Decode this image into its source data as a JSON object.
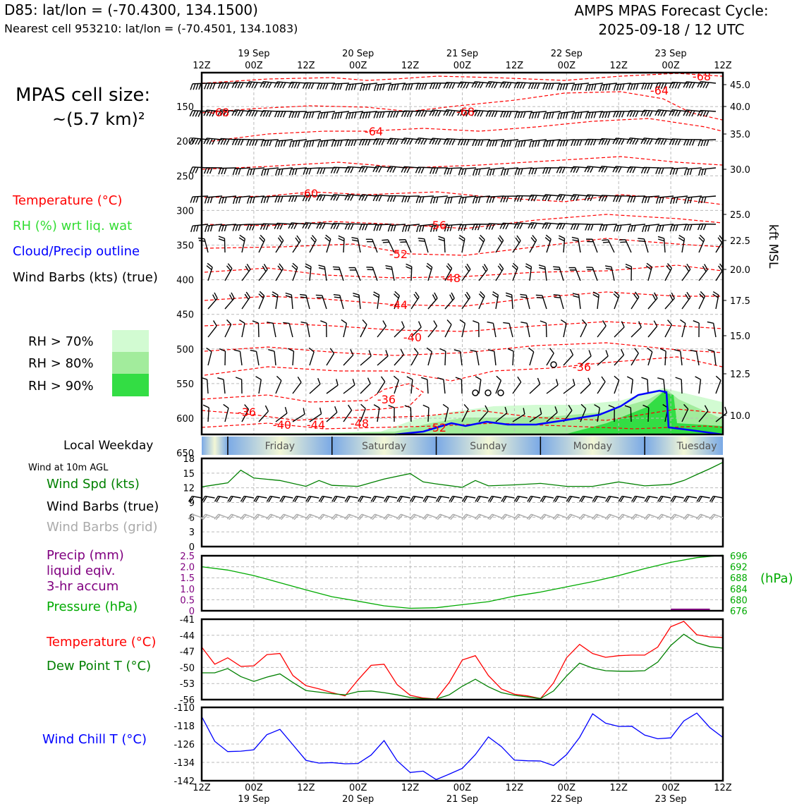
{
  "header": {
    "title_left": "D85: lat/lon = (-70.4300, 134.1500)",
    "subtitle_left": "Nearest cell 953210: lat/lon = (-70.4501, 134.1083)",
    "title_right_line1": "AMPS MPAS Forecast Cycle:",
    "title_right_line2": "2025-09-18 / 12 UTC"
  },
  "cell_size": {
    "line1": "MPAS cell size:",
    "line2": "~(5.7 km)²"
  },
  "legend": {
    "temperature": "Temperature (°C)",
    "rh": "RH (%) wrt liq. wat",
    "cloud": "Cloud/Precip outline",
    "wind": "Wind Barbs (kts) (true)",
    "rh_levels": [
      {
        "label": "RH > 70%",
        "color": "#d2fbd2"
      },
      {
        "label": "RH > 80%",
        "color": "#a2ec9c"
      },
      {
        "label": "RH > 90%",
        "color": "#33dd44"
      }
    ]
  },
  "colors": {
    "temperature": "#ff0000",
    "rh": "#33dd33",
    "cloud": "#0000ff",
    "wind": "#000000",
    "wind_grid": "#aaaaaa",
    "precip": "#800080",
    "pressure": "#00aa00",
    "dewpoint": "#008000",
    "windchill": "#0000ff",
    "weekday_blue": "#7aa9e6",
    "weekday_light": "#f2f7d6"
  },
  "time_axis": {
    "top_ticks": [
      "12Z",
      "00Z",
      "12Z",
      "00Z",
      "12Z",
      "00Z",
      "12Z",
      "00Z",
      "12Z",
      "00Z",
      "12Z"
    ],
    "dates": [
      "19 Sep",
      "20 Sep",
      "21 Sep",
      "22 Sep",
      "23 Sep"
    ]
  },
  "weekday": {
    "label": "Local Weekday",
    "days": [
      "Friday",
      "Saturday",
      "Sunday",
      "Monday",
      "Tuesday"
    ]
  },
  "panel_labels": {
    "wind10": "Wind at 10m AGL",
    "wind_spd": "Wind Spd (kts)",
    "wind_barbs": "Wind Barbs (true)",
    "wind_barbs_grid": "Wind Barbs (grid)",
    "precip_1": "Precip (mm)",
    "precip_2": "liquid eqiv.",
    "precip_3": "3-hr accum",
    "pressure": "Pressure (hPa)",
    "pressure_unit": "(hPa)",
    "temp": "Temperature (°C)",
    "dewpoint": "Dew Point T (°C)",
    "windchill": "Wind Chill T (°C)"
  },
  "chart_data": [
    {
      "type": "heatmap",
      "panel": "vertical time-height cross section",
      "x_time_hours": [
        0,
        120
      ],
      "y_pressure_ticks": [
        150,
        200,
        250,
        300,
        350,
        400,
        450,
        500,
        550,
        600,
        650
      ],
      "y_right_label": "kft MSL",
      "y_right_ticks": [
        "45.0",
        "40.0",
        "35.0",
        "30.0",
        "25.0",
        "22.5",
        "20.0",
        "17.5",
        "15.0",
        "12.5",
        "10.0"
      ],
      "temperature_contour_labels": [
        "-68",
        "-68",
        "-68",
        "-64",
        "-64",
        "-60",
        "-56",
        "-52",
        "-48",
        "-44",
        "-40",
        "-36",
        "-36",
        "-36",
        "-40",
        "-44",
        "-48",
        "-52"
      ]
    },
    {
      "type": "line",
      "panel": "wind at 10m",
      "ylim": [
        0,
        18
      ],
      "yticks": [
        "18",
        "15",
        "12",
        "9",
        "6",
        "3",
        "0"
      ],
      "x_hours": [
        0,
        6,
        9,
        12,
        18,
        24,
        27,
        30,
        36,
        42,
        48,
        51,
        54,
        60,
        63,
        66,
        72,
        78,
        84,
        90,
        96,
        102,
        108,
        111,
        114,
        117,
        120
      ],
      "series": [
        {
          "name": "Wind Spd (kts)",
          "values": [
            12.2,
            13,
            15.6,
            14,
            13.5,
            12.3,
            13.5,
            12.5,
            12.3,
            13.8,
            14.9,
            13.2,
            12.8,
            12.1,
            13.5,
            12.4,
            12.6,
            12.9,
            12.3,
            12.3,
            13.2,
            12.4,
            12.7,
            13.5,
            14.7,
            15.9,
            17.2
          ]
        }
      ]
    },
    {
      "type": "line",
      "panel": "precip and pressure",
      "ylim_left": [
        0,
        2.5
      ],
      "yticks_left": [
        "2.5",
        "2.0",
        "1.5",
        "1.0",
        "0.5",
        "0"
      ],
      "ylim_right": [
        676,
        696
      ],
      "yticks_right": [
        "696",
        "692",
        "688",
        "684",
        "680",
        "676"
      ],
      "x_hours": [
        0,
        6,
        12,
        18,
        24,
        30,
        36,
        42,
        48,
        54,
        60,
        66,
        72,
        78,
        84,
        90,
        96,
        102,
        108,
        114,
        120
      ],
      "series": [
        {
          "name": "Pressure (hPa)",
          "values": [
            692,
            690.8,
            688.8,
            686.2,
            683.6,
            681.1,
            679.5,
            677.8,
            676.9,
            677.1,
            678.2,
            679.3,
            681.3,
            682.8,
            684.7,
            686.6,
            688.8,
            691.3,
            693.6,
            695.3,
            696.2
          ]
        },
        {
          "name": "Precip (mm)",
          "values": [
            0,
            0,
            0,
            0,
            0,
            0,
            0,
            0,
            0,
            0,
            0,
            0,
            0,
            0,
            0,
            0,
            0,
            0,
            0.01,
            0.01,
            0
          ]
        }
      ]
    },
    {
      "type": "line",
      "panel": "temperature and dew point",
      "ylim": [
        -56,
        -41
      ],
      "yticks": [
        "-41",
        "-44",
        "-47",
        "-50",
        "-53",
        "-56"
      ],
      "x_hours": [
        0,
        3,
        6,
        9,
        12,
        15,
        18,
        21,
        24,
        27,
        30,
        33,
        36,
        39,
        42,
        45,
        48,
        51,
        54,
        57,
        60,
        63,
        66,
        69,
        72,
        75,
        78,
        81,
        84,
        87,
        90,
        93,
        96,
        99,
        102,
        105,
        108,
        111,
        114,
        117,
        120
      ],
      "series": [
        {
          "name": "Temperature (°C)",
          "values": [
            -46.2,
            -49.4,
            -48.2,
            -49.8,
            -49.7,
            -47.6,
            -47.4,
            -51.5,
            -53.4,
            -54,
            -54.7,
            -55.3,
            -52.3,
            -49.6,
            -49.4,
            -53.2,
            -55.2,
            -55.7,
            -55.9,
            -52.8,
            -48.6,
            -47.8,
            -51.5,
            -54,
            -55,
            -55.3,
            -55.8,
            -52.9,
            -48.2,
            -45.7,
            -47.4,
            -48.1,
            -47.8,
            -47.7,
            -47.7,
            -46.2,
            -42.4,
            -41.4,
            -43.9,
            -44.3,
            -44.4
          ]
        },
        {
          "name": "Dew Point T (°C)",
          "values": [
            -51,
            -51,
            -50.2,
            -51.7,
            -52.6,
            -51.8,
            -51.2,
            -52.8,
            -54.3,
            -54.6,
            -54.9,
            -55.1,
            -54.5,
            -54.4,
            -54.7,
            -55.1,
            -55.6,
            -55.8,
            -55.9,
            -55.1,
            -53.5,
            -52.2,
            -53.6,
            -54.7,
            -55.2,
            -55.5,
            -55.8,
            -54.4,
            -51.6,
            -49.2,
            -50.1,
            -50.6,
            -50.7,
            -50.7,
            -50.6,
            -49,
            -45.9,
            -43.8,
            -45.4,
            -46.1,
            -46.4
          ]
        }
      ]
    },
    {
      "type": "line",
      "panel": "wind chill",
      "ylim": [
        -142,
        -110
      ],
      "yticks": [
        "-110",
        "-118",
        "-126",
        "-134",
        "-142"
      ],
      "x_hours": [
        0,
        3,
        6,
        9,
        12,
        15,
        18,
        21,
        24,
        27,
        30,
        33,
        36,
        39,
        42,
        45,
        48,
        51,
        54,
        57,
        60,
        63,
        66,
        69,
        72,
        75,
        78,
        81,
        84,
        87,
        90,
        93,
        96,
        99,
        102,
        105,
        108,
        111,
        114,
        117,
        120
      ],
      "series": [
        {
          "name": "Wind Chill T (°C)",
          "values": [
            -114,
            -124.8,
            -129.3,
            -129.1,
            -128.5,
            -121.9,
            -119.6,
            -126.3,
            -133.1,
            -134.3,
            -134.1,
            -134.6,
            -134.5,
            -130.8,
            -124.5,
            -133.3,
            -138.4,
            -137.8,
            -141.5,
            -139.1,
            -136.6,
            -130.6,
            -122.9,
            -127.1,
            -133,
            -133.3,
            -133.4,
            -135.4,
            -130.6,
            -123.1,
            -112.8,
            -116.9,
            -118.3,
            -118.2,
            -122.1,
            -123.7,
            -123.3,
            -115.9,
            -112.5,
            -118.8,
            -123.1
          ]
        }
      ]
    }
  ]
}
